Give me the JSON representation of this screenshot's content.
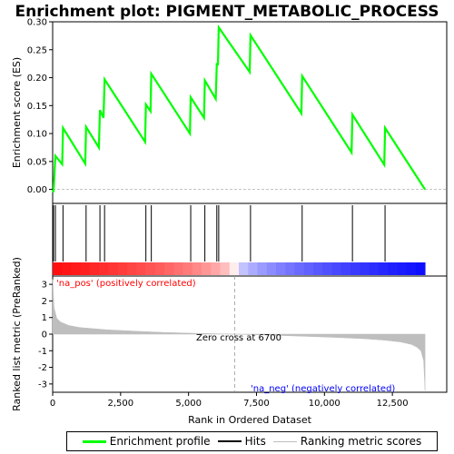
{
  "chart_data": {
    "type": "line",
    "title": "Enrichment plot: PIGMENT_METABOLIC_PROCESS",
    "xlabel": "Rank in Ordered Dataset",
    "ylabel_top": "Enrichment score (ES)",
    "ylabel_bottom": "Ranked list metric (PreRanked)",
    "x_range": [
      0,
      14500
    ],
    "x_ticks": [
      0,
      2500,
      5000,
      7500,
      10000,
      12500
    ],
    "x_tick_labels": [
      "0",
      "2,500",
      "5,000",
      "7,500",
      "10,000",
      "12,500"
    ],
    "es_ylim": [
      -0.025,
      0.3
    ],
    "es_ticks": [
      0.0,
      0.05,
      0.1,
      0.15,
      0.2,
      0.25,
      0.3
    ],
    "es_tick_labels": [
      "0.00",
      "0.05",
      "0.10",
      "0.15",
      "0.20",
      "0.25",
      "0.30"
    ],
    "metric_ylim": [
      -3.5,
      3.5
    ],
    "metric_ticks": [
      3,
      2,
      1,
      0,
      -1,
      -2,
      -3
    ],
    "metric_tick_labels": [
      "3",
      "2",
      "1",
      "0",
      "-1",
      "-2",
      "-3"
    ],
    "series": [
      {
        "name": "Enrichment profile",
        "color": "#00ff00",
        "x": [
          0,
          30,
          100,
          350,
          380,
          1200,
          1230,
          1700,
          1740,
          1870,
          1910,
          3400,
          3430,
          3600,
          3630,
          5050,
          5080,
          5570,
          5600,
          6000,
          6040,
          6080,
          6110,
          7250,
          7280,
          9150,
          9180,
          11000,
          11030,
          12200,
          12230,
          13700
        ],
        "y": [
          0.0,
          -0.005,
          0.06,
          0.045,
          0.11,
          0.046,
          0.112,
          0.075,
          0.142,
          0.128,
          0.197,
          0.085,
          0.152,
          0.14,
          0.207,
          0.1,
          0.165,
          0.128,
          0.195,
          0.162,
          0.226,
          0.222,
          0.29,
          0.21,
          0.276,
          0.136,
          0.203,
          0.066,
          0.134,
          0.044,
          0.11,
          0.0
        ]
      }
    ],
    "hits": [
      30,
      100,
      380,
      1230,
      1740,
      1910,
      3430,
      3630,
      5080,
      5600,
      6040,
      6110,
      7280,
      9180,
      11030,
      12230
    ],
    "metric_profile": {
      "name": "Ranking metric scores",
      "color": "#bebebe",
      "x": [
        0,
        50,
        150,
        300,
        600,
        1000,
        2000,
        3000,
        4000,
        5000,
        6000,
        6700,
        7500,
        8500,
        9500,
        10500,
        11500,
        12200,
        12800,
        13200,
        13400,
        13550,
        13650,
        13700
      ],
      "y": [
        3.3,
        1.6,
        0.95,
        0.72,
        0.52,
        0.4,
        0.26,
        0.18,
        0.11,
        0.06,
        0.02,
        0.0,
        -0.04,
        -0.09,
        -0.14,
        -0.2,
        -0.28,
        -0.36,
        -0.47,
        -0.62,
        -0.78,
        -1.0,
        -1.6,
        -3.4
      ]
    },
    "heat_bar": {
      "positive_color": "#ff0000",
      "negative_color": "#0000ff",
      "max_x": 13700
    },
    "zero_cross_x": 6700,
    "annotations": {
      "pos_label": "'na_pos' (positively correlated)",
      "neg_label": "'na_neg' (negatively correlated)",
      "zero_cross": "Zero cross at 6700"
    },
    "legend": [
      {
        "label": "Enrichment profile",
        "color": "#00ff00"
      },
      {
        "label": "Hits",
        "color": "#000000"
      },
      {
        "label": "Ranking metric scores",
        "color": "#bebebe"
      }
    ]
  }
}
